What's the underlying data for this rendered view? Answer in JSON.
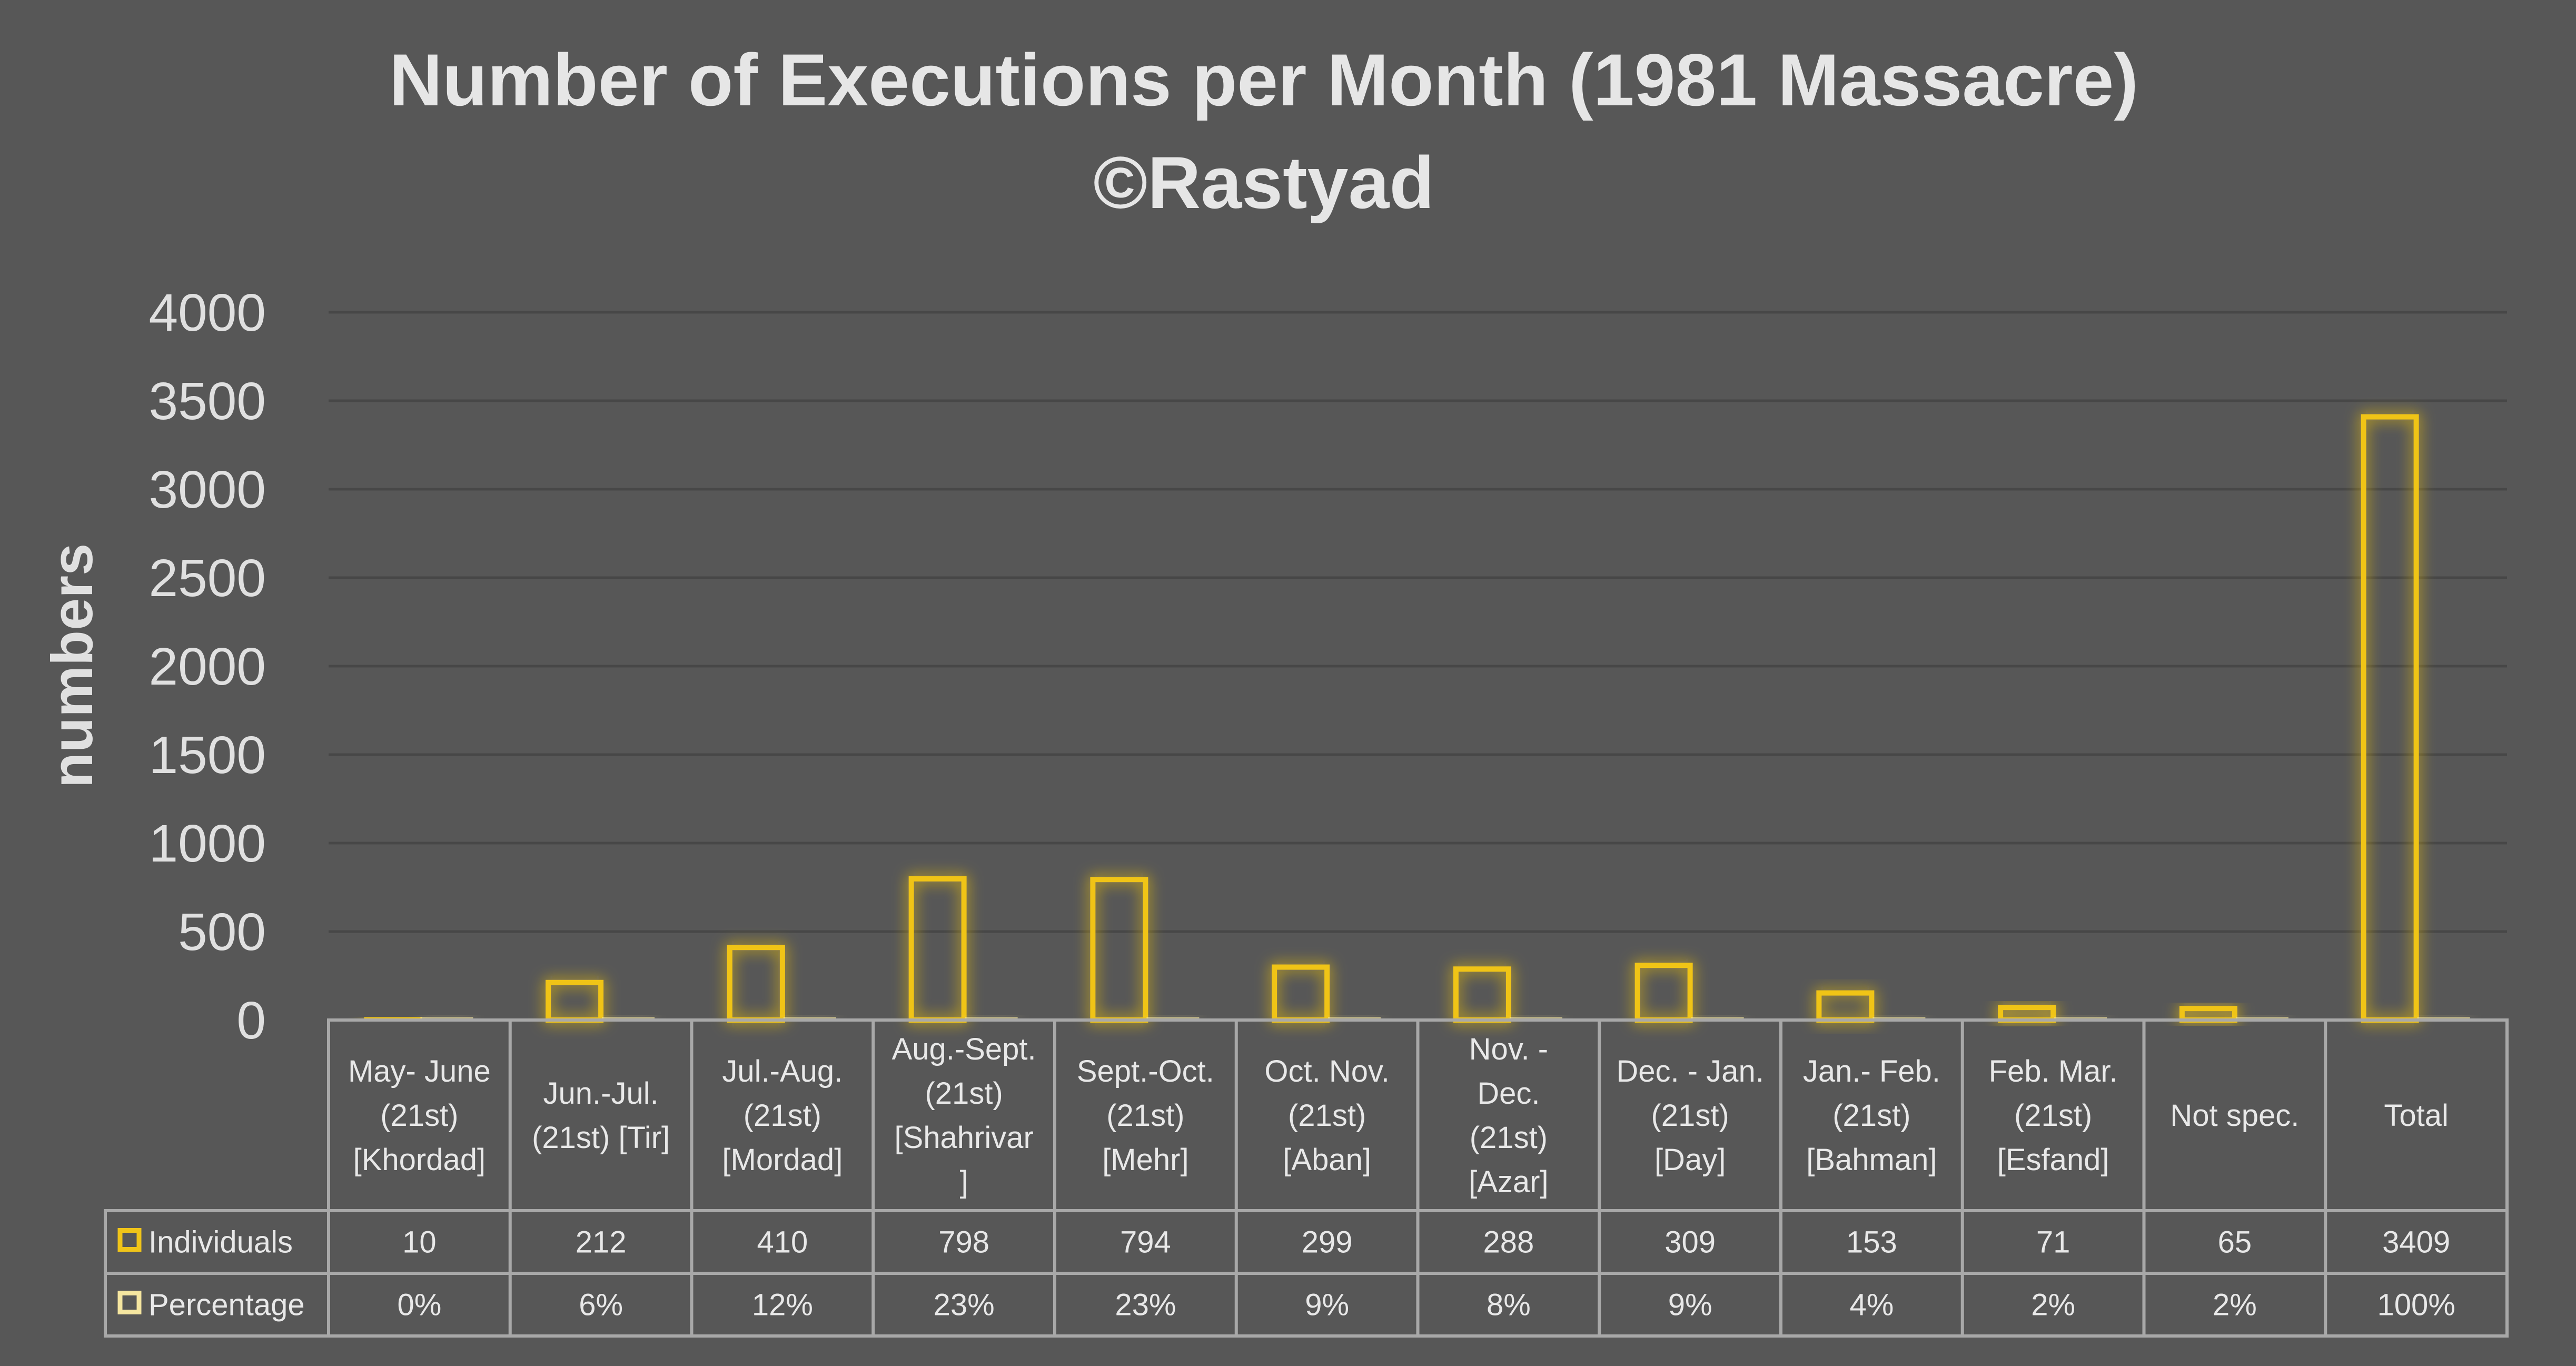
{
  "chart_data": {
    "type": "bar",
    "title": "Number of Executions per Month (1981 Massacre)",
    "subtitle": "©Rastyad",
    "xlabel": "",
    "ylabel": "numbers",
    "ylim": [
      0,
      4000
    ],
    "yticks": [
      "0",
      "500",
      "1000",
      "1500",
      "2000",
      "2500",
      "3000",
      "3500",
      "4000"
    ],
    "grid": true,
    "legend": "data-table",
    "categories": [
      [
        "May- June",
        "(21st)",
        "[Khordad]"
      ],
      [
        "Jun.-Jul.",
        "(21st) [Tir]"
      ],
      [
        "Jul.-Aug.",
        "(21st)",
        "[Mordad]"
      ],
      [
        "Aug.-Sept.",
        "(21st)",
        "[Shahrivar",
        "]"
      ],
      [
        "Sept.-Oct.",
        "(21st)",
        "[Mehr]"
      ],
      [
        "Oct. Nov.",
        "(21st)",
        "[Aban]"
      ],
      [
        "Nov. -",
        "Dec.",
        "(21st)",
        "[Azar]"
      ],
      [
        "Dec. - Jan.",
        "(21st)",
        "[Day]"
      ],
      [
        "Jan.- Feb.",
        "(21st)",
        "[Bahman]"
      ],
      [
        "Feb. Mar.",
        "(21st)",
        "[Esfand]"
      ],
      [
        "Not spec."
      ],
      [
        "Total"
      ]
    ],
    "series": [
      {
        "name": "Individuals",
        "color": "#f0c419",
        "values": [
          10,
          212,
          410,
          798,
          794,
          299,
          288,
          309,
          153,
          71,
          65,
          3409
        ],
        "labels": [
          "10",
          "212",
          "410",
          "798",
          "794",
          "299",
          "288",
          "309",
          "153",
          "71",
          "65",
          "3409"
        ]
      },
      {
        "name": "Percentage",
        "color": "#f5e6a0",
        "values": [
          0.003,
          0.06,
          0.12,
          0.23,
          0.23,
          0.09,
          0.08,
          0.09,
          0.04,
          0.02,
          0.02,
          1.0
        ],
        "labels": [
          "0%",
          "6%",
          "12%",
          "23%",
          "23%",
          "9%",
          "8%",
          "9%",
          "4%",
          "2%",
          "2%",
          "100%"
        ]
      }
    ]
  }
}
